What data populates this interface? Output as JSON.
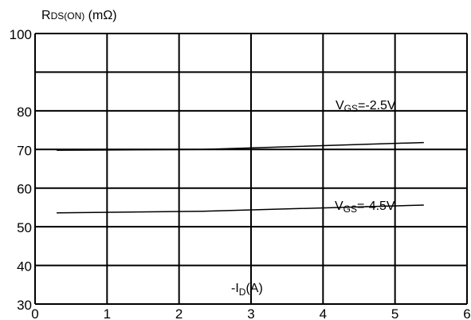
{
  "chart_data": {
    "type": "line",
    "ylabel": {
      "main": "R",
      "sub": "DS(ON)",
      "unit": " (mΩ)"
    },
    "xlabel": {
      "prefix": "-I",
      "sub": "D",
      "unit": "(A)"
    },
    "xlim": [
      0,
      6
    ],
    "ylim": [
      30,
      100
    ],
    "x_ticks": [
      0,
      1,
      2,
      3,
      4,
      5,
      6
    ],
    "y_ticks": [
      30,
      40,
      50,
      60,
      70,
      80,
      100
    ],
    "grid_x": [
      0,
      1,
      2,
      3,
      4,
      5,
      6
    ],
    "grid_y": [
      30,
      40,
      50,
      60,
      70,
      80,
      90,
      100
    ],
    "grid": true,
    "series": [
      {
        "name": "VGS=-2.5V",
        "label": {
          "main": "V",
          "sub": "GS",
          "rest": "=-2.5V"
        },
        "x": [
          0.3,
          2.3,
          5.4
        ],
        "y": [
          69.8,
          70.0,
          71.8
        ]
      },
      {
        "name": "VGS=-4.5V",
        "label": {
          "main": "V",
          "sub": "GS",
          "rest": "=-4.5V"
        },
        "x": [
          0.3,
          2.3,
          5.4
        ],
        "y": [
          53.6,
          54.0,
          55.6
        ]
      }
    ]
  }
}
